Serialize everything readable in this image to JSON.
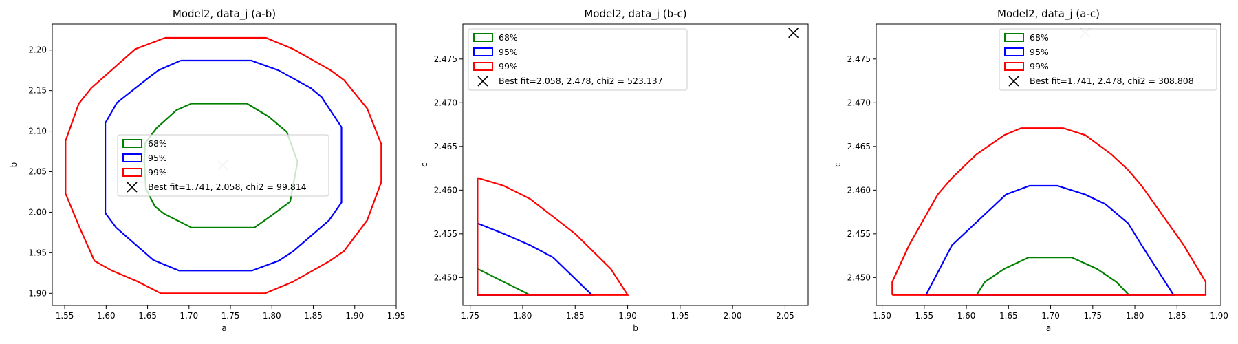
{
  "chart_data": [
    {
      "type": "contour",
      "title": "Model2, data_j (a-b)",
      "xlabel": "a",
      "ylabel": "b",
      "xlim": [
        1.535,
        1.95
      ],
      "ylim": [
        1.885,
        2.232
      ],
      "xticks": [
        1.55,
        1.6,
        1.65,
        1.7,
        1.75,
        1.8,
        1.85,
        1.9,
        1.95
      ],
      "yticks": [
        1.9,
        1.95,
        2.0,
        2.05,
        2.1,
        2.15,
        2.2
      ],
      "x_tick_labels": [
        "1.55",
        "1.60",
        "1.65",
        "1.70",
        "1.75",
        "1.80",
        "1.85",
        "1.90",
        "1.95"
      ],
      "y_tick_labels": [
        "1.90",
        "1.95",
        "2.00",
        "2.05",
        "2.10",
        "2.15",
        "2.20"
      ],
      "legend_position": "center",
      "legend": [
        "68%",
        "95%",
        "99%",
        "Best fit=1.741, 2.058, chi2 = 99.814"
      ],
      "best_fit": {
        "x": 1.741,
        "y": 2.058,
        "color": "#c0c0c0"
      },
      "series": [
        {
          "name": "68%",
          "color": "#008000",
          "points": [
            [
              1.703,
              2.134
            ],
            [
              1.77,
              2.134
            ],
            [
              1.796,
              2.118
            ],
            [
              1.818,
              2.099
            ],
            [
              1.831,
              2.062
            ],
            [
              1.822,
              2.013
            ],
            [
              1.801,
              1.997
            ],
            [
              1.779,
              1.981
            ],
            [
              1.703,
              1.981
            ],
            [
              1.67,
              1.998
            ],
            [
              1.659,
              2.007
            ],
            [
              1.648,
              2.029
            ],
            [
              1.646,
              2.063
            ],
            [
              1.647,
              2.085
            ],
            [
              1.661,
              2.104
            ],
            [
              1.685,
              2.126
            ],
            [
              1.703,
              2.134
            ]
          ]
        },
        {
          "name": "95%",
          "color": "#0000ff",
          "points": [
            [
              1.69,
              2.187
            ],
            [
              1.775,
              2.187
            ],
            [
              1.808,
              2.175
            ],
            [
              1.847,
              2.153
            ],
            [
              1.86,
              2.142
            ],
            [
              1.884,
              2.105
            ],
            [
              1.884,
              2.012
            ],
            [
              1.869,
              1.99
            ],
            [
              1.826,
              1.952
            ],
            [
              1.808,
              1.94
            ],
            [
              1.776,
              1.928
            ],
            [
              1.688,
              1.928
            ],
            [
              1.657,
              1.941
            ],
            [
              1.612,
              1.981
            ],
            [
              1.599,
              1.999
            ],
            [
              1.599,
              2.11
            ],
            [
              1.613,
              2.135
            ],
            [
              1.649,
              2.164
            ],
            [
              1.663,
              2.175
            ],
            [
              1.69,
              2.187
            ]
          ]
        },
        {
          "name": "99%",
          "color": "#ff0000",
          "points": [
            [
              1.671,
              2.215
            ],
            [
              1.793,
              2.215
            ],
            [
              1.826,
              2.201
            ],
            [
              1.871,
              2.175
            ],
            [
              1.887,
              2.163
            ],
            [
              1.915,
              2.128
            ],
            [
              1.932,
              2.084
            ],
            [
              1.932,
              2.037
            ],
            [
              1.915,
              1.99
            ],
            [
              1.887,
              1.952
            ],
            [
              1.87,
              1.94
            ],
            [
              1.825,
              1.914
            ],
            [
              1.792,
              1.9
            ],
            [
              1.666,
              1.9
            ],
            [
              1.637,
              1.915
            ],
            [
              1.607,
              1.928
            ],
            [
              1.586,
              1.94
            ],
            [
              1.568,
              1.981
            ],
            [
              1.551,
              2.023
            ],
            [
              1.551,
              2.088
            ],
            [
              1.567,
              2.134
            ],
            [
              1.582,
              2.153
            ],
            [
              1.635,
              2.201
            ],
            [
              1.671,
              2.215
            ]
          ]
        }
      ]
    },
    {
      "type": "contour",
      "title": "Model2, data_j (b-c)",
      "xlabel": "b",
      "ylabel": "c",
      "xlim": [
        1.743,
        2.072
      ],
      "ylim": [
        2.4468,
        2.479
      ],
      "xticks": [
        1.75,
        1.8,
        1.85,
        1.9,
        1.95,
        2.0,
        2.05
      ],
      "yticks": [
        2.45,
        2.455,
        2.46,
        2.465,
        2.47,
        2.475
      ],
      "x_tick_labels": [
        "1.75",
        "1.80",
        "1.85",
        "1.90",
        "1.95",
        "2.00",
        "2.05"
      ],
      "y_tick_labels": [
        "2.450",
        "2.455",
        "2.460",
        "2.465",
        "2.470",
        "2.475"
      ],
      "legend_position": "upper left",
      "legend": [
        "68%",
        "95%",
        "99%",
        "Best fit=2.058, 2.478, chi2 = 523.137"
      ],
      "best_fit": {
        "x": 2.058,
        "y": 2.478,
        "color": "#000000"
      },
      "series": [
        {
          "name": "68%",
          "color": "#008000",
          "points": [
            [
              1.757,
              2.451
            ],
            [
              1.782,
              2.4495
            ],
            [
              1.807,
              2.448
            ],
            [
              1.757,
              2.448
            ],
            [
              1.757,
              2.451
            ]
          ]
        },
        {
          "name": "95%",
          "color": "#0000ff",
          "points": [
            [
              1.757,
              2.4562
            ],
            [
              1.782,
              2.455
            ],
            [
              1.807,
              2.4537
            ],
            [
              1.829,
              2.4523
            ],
            [
              1.866,
              2.448
            ],
            [
              1.757,
              2.448
            ],
            [
              1.757,
              2.4562
            ]
          ]
        },
        {
          "name": "99%",
          "color": "#ff0000",
          "points": [
            [
              1.757,
              2.4614
            ],
            [
              1.782,
              2.4605
            ],
            [
              1.807,
              2.459
            ],
            [
              1.85,
              2.455
            ],
            [
              1.884,
              2.451
            ],
            [
              1.9,
              2.448
            ],
            [
              1.757,
              2.448
            ],
            [
              1.757,
              2.4614
            ]
          ]
        }
      ]
    },
    {
      "type": "contour",
      "title": "Model2, data_j (a-c)",
      "xlabel": "a",
      "ylabel": "c",
      "xlim": [
        1.493,
        1.902
      ],
      "ylim": [
        2.4468,
        2.479
      ],
      "xticks": [
        1.5,
        1.55,
        1.6,
        1.65,
        1.7,
        1.75,
        1.8,
        1.85,
        1.9
      ],
      "yticks": [
        2.45,
        2.455,
        2.46,
        2.465,
        2.47,
        2.475
      ],
      "x_tick_labels": [
        "1.50",
        "1.55",
        "1.60",
        "1.65",
        "1.70",
        "1.75",
        "1.80",
        "1.85",
        "1.90"
      ],
      "y_tick_labels": [
        "2.450",
        "2.455",
        "2.460",
        "2.465",
        "2.470",
        "2.475"
      ],
      "legend_position": "upper right",
      "legend": [
        "68%",
        "95%",
        "99%",
        "Best fit=1.741, 2.478, chi2 = 308.808"
      ],
      "best_fit": {
        "x": 1.741,
        "y": 2.478,
        "color": "#c0c0c0"
      },
      "series": [
        {
          "name": "68%",
          "color": "#008000",
          "points": [
            [
              1.612,
              2.448
            ],
            [
              1.622,
              2.4495
            ],
            [
              1.645,
              2.451
            ],
            [
              1.674,
              2.4523
            ],
            [
              1.725,
              2.4523
            ],
            [
              1.755,
              2.451
            ],
            [
              1.778,
              2.4495
            ],
            [
              1.793,
              2.448
            ],
            [
              1.612,
              2.448
            ]
          ]
        },
        {
          "name": "95%",
          "color": "#0000ff",
          "points": [
            [
              1.552,
              2.448
            ],
            [
              1.583,
              2.4537
            ],
            [
              1.647,
              2.4595
            ],
            [
              1.675,
              2.4605
            ],
            [
              1.708,
              2.4605
            ],
            [
              1.741,
              2.4595
            ],
            [
              1.765,
              2.4584
            ],
            [
              1.792,
              2.4562
            ],
            [
              1.808,
              2.4537
            ],
            [
              1.846,
              2.448
            ],
            [
              1.552,
              2.448
            ]
          ]
        },
        {
          "name": "99%",
          "color": "#ff0000",
          "points": [
            [
              1.512,
              2.448
            ],
            [
              1.512,
              2.4495
            ],
            [
              1.532,
              2.4537
            ],
            [
              1.566,
              2.4595
            ],
            [
              1.583,
              2.4614
            ],
            [
              1.612,
              2.4641
            ],
            [
              1.645,
              2.4663
            ],
            [
              1.665,
              2.4671
            ],
            [
              1.715,
              2.4671
            ],
            [
              1.741,
              2.4663
            ],
            [
              1.772,
              2.4641
            ],
            [
              1.792,
              2.4623
            ],
            [
              1.808,
              2.4605
            ],
            [
              1.858,
              2.4537
            ],
            [
              1.884,
              2.4495
            ],
            [
              1.884,
              2.448
            ],
            [
              1.512,
              2.448
            ]
          ]
        }
      ]
    }
  ]
}
